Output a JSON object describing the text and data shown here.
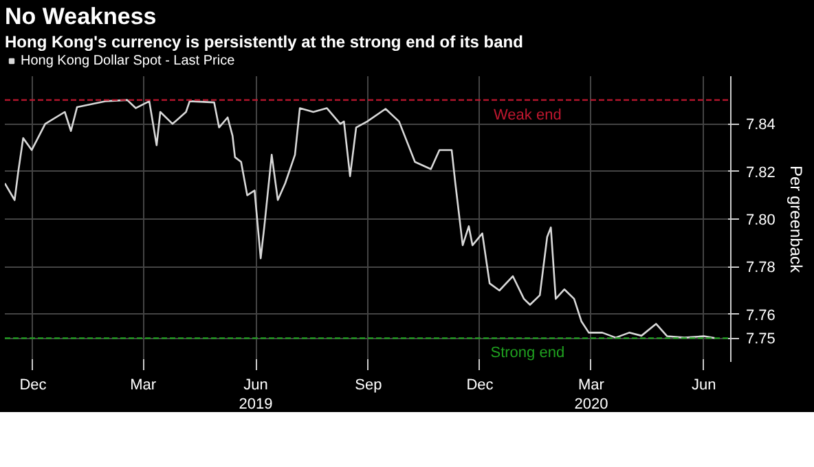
{
  "chart_data": {
    "type": "line",
    "title": "No Weakness",
    "subtitle": "Hong Kong's currency is persistently at the strong end of its band",
    "ylabel": "Per greenback",
    "x": [
      "2018-11-08",
      "2018-11-16",
      "2018-11-19",
      "2018-11-23",
      "2018-11-30",
      "2018-12-11",
      "2018-12-27",
      "2019-01-01",
      "2019-01-06",
      "2019-01-29",
      "2019-02-16",
      "2019-02-23",
      "2019-03-06",
      "2019-03-12",
      "2019-03-15",
      "2019-03-25",
      "2019-04-05",
      "2019-04-08",
      "2019-04-28",
      "2019-05-02",
      "2019-05-09",
      "2019-05-13",
      "2019-05-15",
      "2019-05-20",
      "2019-05-25",
      "2019-05-31",
      "2019-06-05",
      "2019-06-08",
      "2019-06-14",
      "2019-06-19",
      "2019-06-25",
      "2019-07-03",
      "2019-07-07",
      "2019-07-18",
      "2019-07-29",
      "2019-08-09",
      "2019-08-12",
      "2019-08-17",
      "2019-08-22",
      "2019-08-31",
      "2019-09-15",
      "2019-09-26",
      "2019-10-09",
      "2019-10-22",
      "2019-10-29",
      "2019-11-08",
      "2019-11-11",
      "2019-11-17",
      "2019-11-22",
      "2019-11-25",
      "2019-12-03",
      "2019-12-09",
      "2019-12-17",
      "2019-12-28",
      "2020-01-06",
      "2020-01-11",
      "2020-01-19",
      "2020-01-25",
      "2020-01-28",
      "2020-02-01",
      "2020-02-08",
      "2020-02-16",
      "2020-02-22",
      "2020-02-28",
      "2020-03-10",
      "2020-03-21",
      "2020-04-01",
      "2020-04-11",
      "2020-04-23",
      "2020-05-02",
      "2020-05-16",
      "2020-06-01",
      "2020-06-10"
    ],
    "series": [
      {
        "name": "Hong Kong Dollar Spot - Last Price",
        "color": "#d9d9d9",
        "values": [
          7.815,
          7.808,
          7.82,
          7.834,
          7.829,
          7.84,
          7.845,
          7.837,
          7.847,
          7.8495,
          7.85,
          7.8466,
          7.8495,
          7.831,
          7.845,
          7.84,
          7.845,
          7.8495,
          7.849,
          7.8385,
          7.8427,
          7.835,
          7.826,
          7.824,
          7.81,
          7.812,
          7.7835,
          7.797,
          7.827,
          7.808,
          7.815,
          7.827,
          7.8466,
          7.845,
          7.8466,
          7.84,
          7.841,
          7.818,
          7.8385,
          7.841,
          7.8463,
          7.841,
          7.824,
          7.821,
          7.829,
          7.829,
          7.815,
          7.789,
          7.797,
          7.789,
          7.794,
          7.773,
          7.77,
          7.776,
          7.7665,
          7.764,
          7.768,
          7.7925,
          7.7965,
          7.7665,
          7.7705,
          7.7665,
          7.757,
          7.7523,
          7.7523,
          7.7502,
          7.7523,
          7.751,
          7.756,
          7.7508,
          7.7502,
          7.7508,
          7.75
        ]
      }
    ],
    "xlim": [
      "2018-11-08",
      "2020-06-23"
    ],
    "xticks": [
      {
        "value": "2018-12-01",
        "label": "Dec"
      },
      {
        "value": "2019-03-01",
        "label": "Mar"
      },
      {
        "value": "2019-06-01",
        "label": "Jun"
      },
      {
        "value": "2019-09-01",
        "label": "Sep"
      },
      {
        "value": "2019-12-01",
        "label": "Dec"
      },
      {
        "value": "2020-03-01",
        "label": "Mar"
      },
      {
        "value": "2020-06-01",
        "label": "Jun"
      }
    ],
    "x2lim": [
      "2018-11-08",
      "2020-06-23"
    ],
    "x2ticks": [
      {
        "value": "2019-06-01",
        "label": "2019"
      },
      {
        "value": "2020-03-01",
        "label": "2020"
      }
    ],
    "ylim": [
      7.74,
      7.86
    ],
    "yticks": [
      7.75,
      7.76,
      7.78,
      {
        "value": 7.8,
        "label": "7.80"
      },
      7.82,
      7.84
    ],
    "ref_lines": [
      {
        "axis": "y",
        "value": 7.85,
        "label": "Weak end",
        "color": "#c0172f",
        "line_style": "dashed"
      },
      {
        "axis": "y",
        "value": 7.75,
        "label": "Strong end",
        "color": "#1fa01f",
        "line_style": "dashed"
      }
    ],
    "grid": true,
    "legend": "top left",
    "marker": "none",
    "line_style": "solid"
  }
}
